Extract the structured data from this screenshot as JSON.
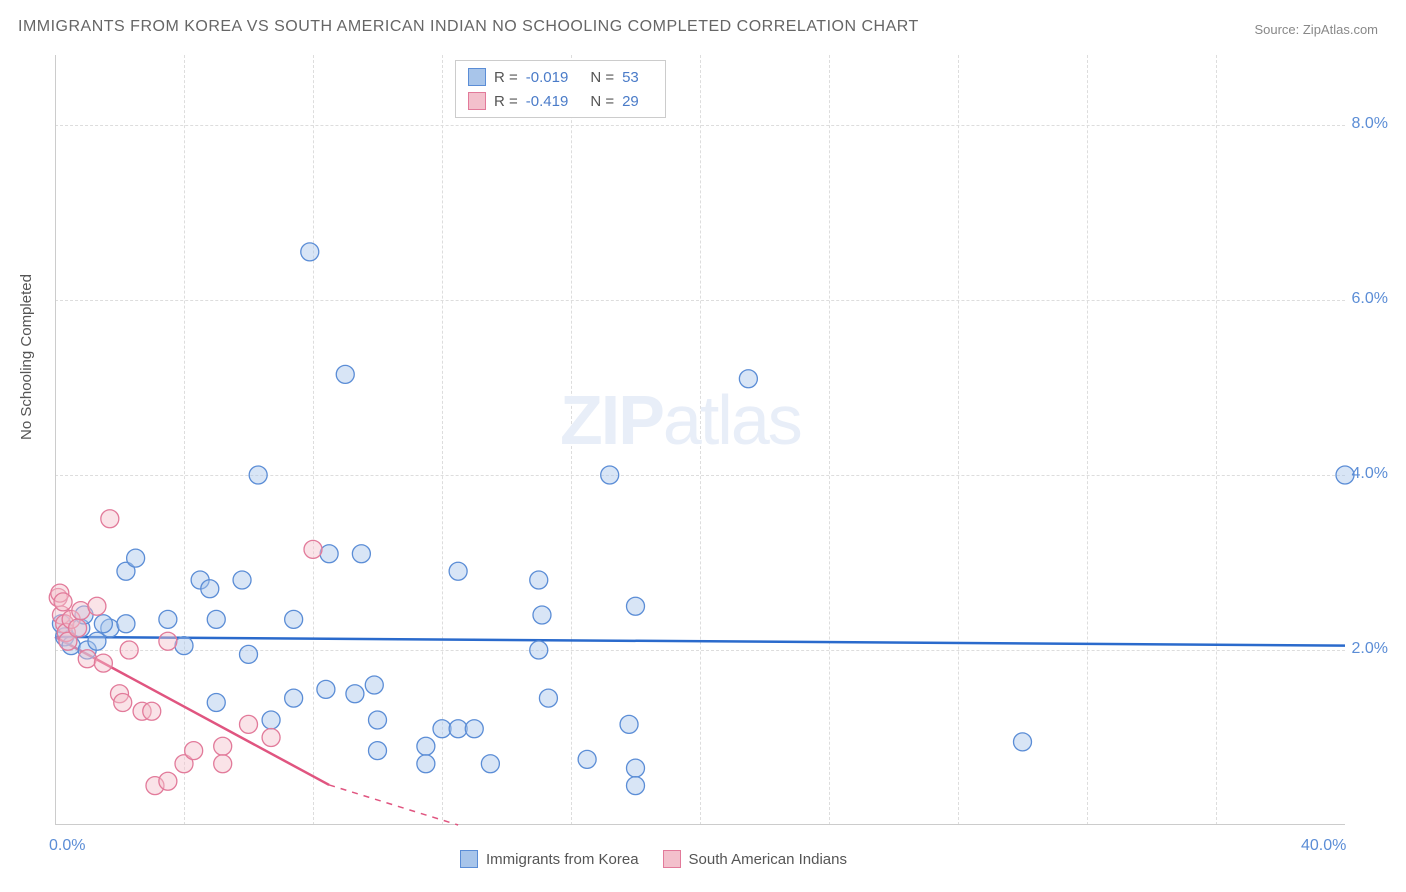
{
  "title": "IMMIGRANTS FROM KOREA VS SOUTH AMERICAN INDIAN NO SCHOOLING COMPLETED CORRELATION CHART",
  "source": "Source: ZipAtlas.com",
  "y_axis_label": "No Schooling Completed",
  "watermark_zip": "ZIP",
  "watermark_atlas": "atlas",
  "chart": {
    "type": "scatter",
    "xlim": [
      0,
      40
    ],
    "ylim": [
      0,
      8.8
    ],
    "x_tick_labels": [
      "0.0%",
      "40.0%"
    ],
    "y_tick_labels": [
      {
        "value": 2.0,
        "label": "2.0%"
      },
      {
        "value": 4.0,
        "label": "4.0%"
      },
      {
        "value": 6.0,
        "label": "6.0%"
      },
      {
        "value": 8.0,
        "label": "8.0%"
      }
    ],
    "x_minor_ticks": [
      4,
      8,
      12,
      16,
      20,
      24,
      28,
      32,
      36
    ],
    "grid_color": "#dddddd",
    "background_color": "#ffffff",
    "marker_radius": 9,
    "marker_fill_opacity": 0.45,
    "marker_stroke_width": 1.3,
    "series": [
      {
        "name": "Immigrants from Korea",
        "color_fill": "#a8c5ea",
        "color_stroke": "#5b8dd6",
        "legend_label": "Immigrants from Korea",
        "R": "-0.019",
        "N": "53",
        "trend": {
          "y_start": 2.15,
          "y_end": 2.05,
          "x_start": 0,
          "x_end": 40,
          "color": "#2a6acc",
          "width": 2.5,
          "dash_extend": false
        },
        "points": [
          [
            0.2,
            2.3
          ],
          [
            0.3,
            2.15
          ],
          [
            0.5,
            2.05
          ],
          [
            0.8,
            2.25
          ],
          [
            0.9,
            2.4
          ],
          [
            1.0,
            2.0
          ],
          [
            1.7,
            2.25
          ],
          [
            2.2,
            2.9
          ],
          [
            2.2,
            2.3
          ],
          [
            2.5,
            3.05
          ],
          [
            3.5,
            2.35
          ],
          [
            4.0,
            2.05
          ],
          [
            4.5,
            2.8
          ],
          [
            5.0,
            2.35
          ],
          [
            5.0,
            1.4
          ],
          [
            5.8,
            2.8
          ],
          [
            6.0,
            1.95
          ],
          [
            6.3,
            4.0
          ],
          [
            6.7,
            1.2
          ],
          [
            7.4,
            2.35
          ],
          [
            7.4,
            1.45
          ],
          [
            7.9,
            6.55
          ],
          [
            8.5,
            3.1
          ],
          [
            8.4,
            1.55
          ],
          [
            9.0,
            5.15
          ],
          [
            9.3,
            1.5
          ],
          [
            9.5,
            3.1
          ],
          [
            9.9,
            1.6
          ],
          [
            10.0,
            1.2
          ],
          [
            10.0,
            0.85
          ],
          [
            11.5,
            0.9
          ],
          [
            11.5,
            0.7
          ],
          [
            12.0,
            1.1
          ],
          [
            12.5,
            2.9
          ],
          [
            12.5,
            1.1
          ],
          [
            13.0,
            1.1
          ],
          [
            15.0,
            2.8
          ],
          [
            15.0,
            2.0
          ],
          [
            15.1,
            2.4
          ],
          [
            15.3,
            1.45
          ],
          [
            16.5,
            0.75
          ],
          [
            17.8,
            1.15
          ],
          [
            18.0,
            0.65
          ],
          [
            18.0,
            0.45
          ],
          [
            18.0,
            2.5
          ],
          [
            21.5,
            5.1
          ],
          [
            17.2,
            4.0
          ],
          [
            30.0,
            0.95
          ],
          [
            40.0,
            4.0
          ],
          [
            13.5,
            0.7
          ],
          [
            1.3,
            2.1
          ],
          [
            1.5,
            2.3
          ],
          [
            4.8,
            2.7
          ]
        ]
      },
      {
        "name": "South American Indians",
        "color_fill": "#f3c0cc",
        "color_stroke": "#e27a9a",
        "legend_label": "South American Indians",
        "R": "-0.419",
        "N": "29",
        "trend": {
          "y_start": 2.15,
          "y_end_at_zero_x": 10.8,
          "color": "#e05580",
          "width": 2.5,
          "dash_extend": true,
          "dash_to_x": 12.5
        },
        "points": [
          [
            0.1,
            2.6
          ],
          [
            0.15,
            2.65
          ],
          [
            0.2,
            2.4
          ],
          [
            0.25,
            2.55
          ],
          [
            0.3,
            2.3
          ],
          [
            0.35,
            2.2
          ],
          [
            0.4,
            2.1
          ],
          [
            0.5,
            2.35
          ],
          [
            0.7,
            2.25
          ],
          [
            0.8,
            2.45
          ],
          [
            1.0,
            1.9
          ],
          [
            1.3,
            2.5
          ],
          [
            1.5,
            1.85
          ],
          [
            1.7,
            3.5
          ],
          [
            2.0,
            1.5
          ],
          [
            2.1,
            1.4
          ],
          [
            2.3,
            2.0
          ],
          [
            2.7,
            1.3
          ],
          [
            3.0,
            1.3
          ],
          [
            3.1,
            0.45
          ],
          [
            3.5,
            0.5
          ],
          [
            3.5,
            2.1
          ],
          [
            4.0,
            0.7
          ],
          [
            4.3,
            0.85
          ],
          [
            5.2,
            0.9
          ],
          [
            5.2,
            0.7
          ],
          [
            6.0,
            1.15
          ],
          [
            6.7,
            1.0
          ],
          [
            8.0,
            3.15
          ]
        ]
      }
    ]
  },
  "legend_top": {
    "R_label": "R =",
    "N_label": "N ="
  }
}
